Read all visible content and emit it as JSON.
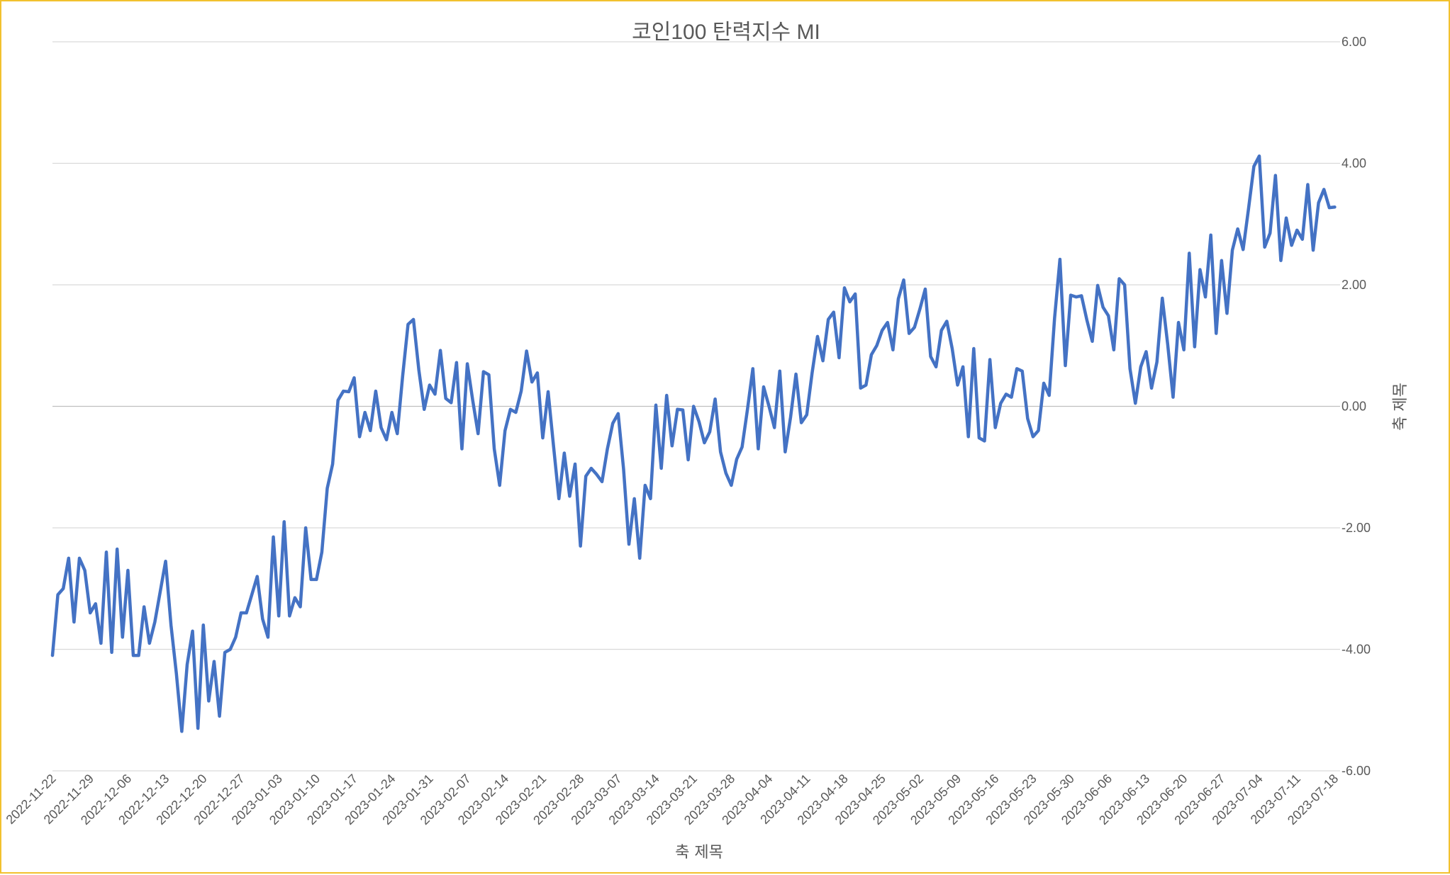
{
  "chart_data": {
    "type": "line",
    "title": "코인100 탄력지수 MI",
    "xlabel": "축 제목",
    "ylabel": "축 제목",
    "ylim": [
      -6,
      6
    ],
    "yticks": [
      -6,
      -4,
      -2,
      0,
      2,
      4,
      6
    ],
    "ytick_labels": [
      "-6.00",
      "-4.00",
      "-2.00",
      "0.00",
      "2.00",
      "4.00",
      "6.00"
    ],
    "y_axis_position": "right",
    "x_range": [
      "2022-11-22",
      "2023-07-19"
    ],
    "x_ticks": [
      "2022-11-22",
      "2022-11-29",
      "2022-12-06",
      "2022-12-13",
      "2022-12-20",
      "2022-12-27",
      "2023-01-03",
      "2023-01-10",
      "2023-01-17",
      "2023-01-24",
      "2023-01-31",
      "2023-02-07",
      "2023-02-14",
      "2023-02-21",
      "2023-02-28",
      "2023-03-07",
      "2023-03-14",
      "2023-03-21",
      "2023-03-28",
      "2023-04-04",
      "2023-04-11",
      "2023-04-18",
      "2023-04-25",
      "2023-05-02",
      "2023-05-09",
      "2023-05-16",
      "2023-05-23",
      "2023-05-30",
      "2023-06-06",
      "2023-06-13",
      "2023-06-20",
      "2023-06-27",
      "2023-07-04",
      "2023-07-11",
      "2023-07-18"
    ],
    "grid": true,
    "legend": "none",
    "colors": {
      "line": "#4472c4",
      "grid": "#d9d9d9",
      "text": "#595959",
      "border": "#f2c12e"
    },
    "series": [
      {
        "x_start": "2022-11-22",
        "x_step_days": 1,
        "values": [
          -4.1,
          -3.1,
          -3.0,
          -2.5,
          -3.55,
          -2.5,
          -2.7,
          -3.4,
          -3.25,
          -3.9,
          -2.4,
          -4.05,
          -2.35,
          -3.8,
          -2.7,
          -4.1,
          -4.1,
          -3.3,
          -3.9,
          -3.55,
          -3.05,
          -2.55,
          -3.6,
          -4.4,
          -5.35,
          -4.25,
          -3.7,
          -5.3,
          -3.6,
          -4.85,
          -4.2,
          -5.1,
          -4.05,
          -4.0,
          -3.8,
          -3.4,
          -3.4,
          -3.1,
          -2.8,
          -3.5,
          -3.8,
          -2.15,
          -3.45,
          -1.9,
          -3.45,
          -3.15,
          -3.3,
          -2.0,
          -2.85,
          -2.85,
          -2.4,
          -1.35,
          -0.95,
          0.1,
          0.25,
          0.24,
          0.47,
          -0.5,
          -0.1,
          -0.4,
          0.25,
          -0.35,
          -0.55,
          -0.1,
          -0.45,
          0.5,
          1.35,
          1.43,
          0.6,
          -0.05,
          0.35,
          0.2,
          0.92,
          0.13,
          0.06,
          0.72,
          -0.7,
          0.7,
          0.1,
          -0.45,
          0.57,
          0.52,
          -0.7,
          -1.3,
          -0.4,
          -0.05,
          -0.1,
          0.25,
          0.91,
          0.4,
          0.55,
          -0.52,
          0.24,
          -0.65,
          -1.52,
          -0.77,
          -1.48,
          -0.95,
          -2.3,
          -1.15,
          -1.02,
          -1.12,
          -1.24,
          -0.7,
          -0.28,
          -0.12,
          -1.03,
          -2.27,
          -1.52,
          -2.5,
          -1.3,
          -1.52,
          0.02,
          -1.02,
          0.18,
          -0.65,
          -0.05,
          -0.06,
          -0.88,
          0.0,
          -0.25,
          -0.6,
          -0.42,
          0.12,
          -0.75,
          -1.1,
          -1.3,
          -0.87,
          -0.67,
          -0.05,
          0.62,
          -0.7,
          0.32,
          0.0,
          -0.35,
          0.58,
          -0.75,
          -0.18,
          0.53,
          -0.27,
          -0.14,
          0.55,
          1.15,
          0.75,
          1.43,
          1.55,
          0.8,
          1.95,
          1.72,
          1.85,
          0.3,
          0.35,
          0.85,
          1.0,
          1.25,
          1.38,
          0.93,
          1.77,
          2.08,
          1.2,
          1.3,
          1.6,
          1.93,
          0.82,
          0.65,
          1.25,
          1.4,
          0.95,
          0.35,
          0.65,
          -0.5,
          0.95,
          -0.52,
          -0.57,
          0.77,
          -0.35,
          0.05,
          0.2,
          0.15,
          0.62,
          0.58,
          -0.2,
          -0.5,
          -0.4,
          0.38,
          0.18,
          1.45,
          2.42,
          0.67,
          1.83,
          1.8,
          1.82,
          1.42,
          1.07,
          1.99,
          1.63,
          1.49,
          0.93,
          2.1,
          2.0,
          0.62,
          0.05,
          0.65,
          0.9,
          0.3,
          0.73,
          1.78,
          1.02,
          0.15,
          1.38,
          0.93,
          2.52,
          0.98,
          2.25,
          1.8,
          2.82,
          1.2,
          2.4,
          1.53,
          2.57,
          2.92,
          2.58,
          3.25,
          3.95,
          4.12,
          2.62,
          2.85,
          3.8,
          2.4,
          3.1,
          2.65,
          2.9,
          2.75,
          3.65,
          2.57,
          3.35,
          3.57,
          3.27,
          3.28
        ]
      }
    ]
  }
}
